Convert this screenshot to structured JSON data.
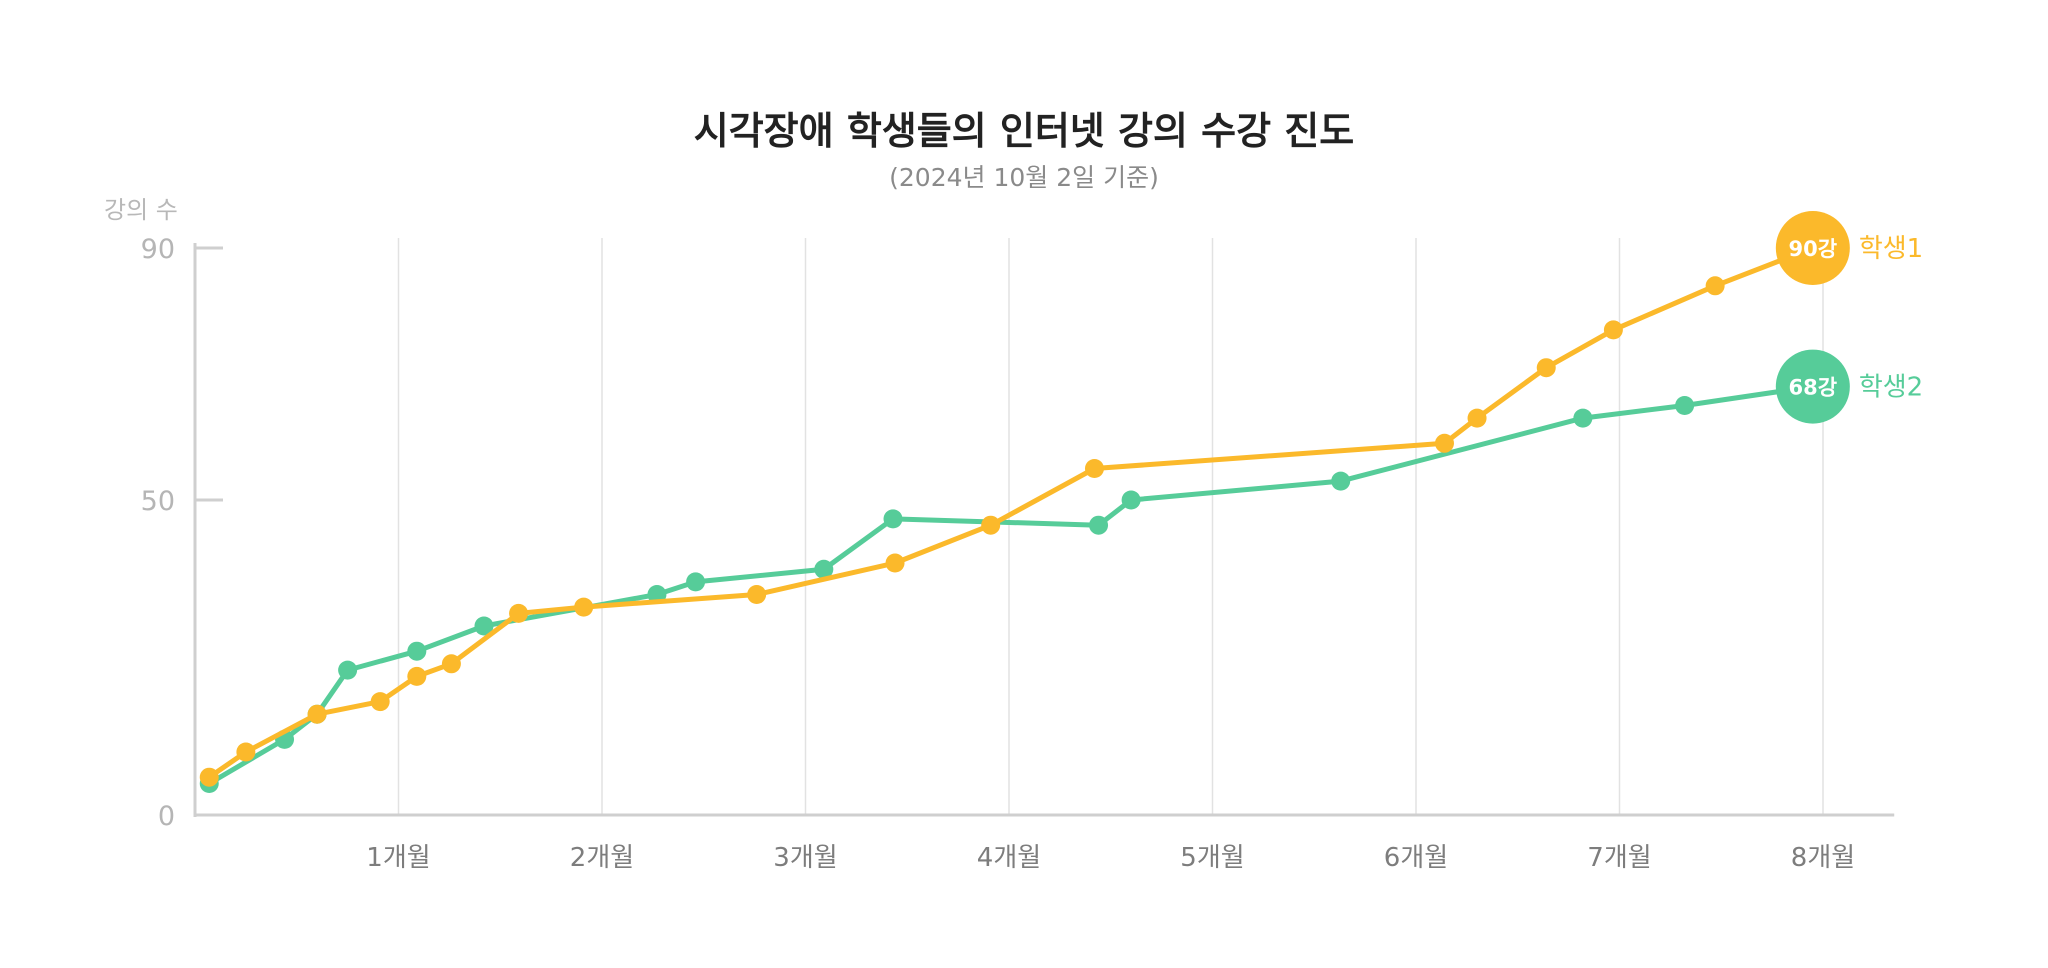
{
  "chart_data": {
    "type": "line",
    "title": "시각장애 학생들의 인터넷 강의 수강 진도",
    "subtitle": "(2024년 10월 2일 기준)",
    "ylabel": "강의 수",
    "xlabel": "",
    "ylim": [
      0,
      90
    ],
    "xlim": [
      0,
      8.35
    ],
    "y_ticks": [
      "0",
      "50",
      "90"
    ],
    "y_tick_values": [
      0,
      50,
      90
    ],
    "x_ticks": [
      "1개월",
      "2개월",
      "3개월",
      "4개월",
      "5개월",
      "6개월",
      "7개월",
      "8개월"
    ],
    "x_tick_values": [
      1,
      2,
      3,
      4,
      5,
      6,
      7,
      8
    ],
    "grid": "vertical",
    "series": [
      {
        "name": "학생2",
        "color": "#56cc99",
        "end_label": "68강",
        "x": [
          0.07,
          0.44,
          0.6,
          0.75,
          1.09,
          1.42,
          2.27,
          2.46,
          3.09,
          3.43,
          4.44,
          4.6,
          5.63,
          6.82,
          7.32,
          7.95
        ],
        "y": [
          5,
          12,
          16,
          23,
          26,
          30,
          35,
          37,
          39,
          47,
          46,
          50,
          53,
          63,
          65,
          68
        ]
      },
      {
        "name": "학생1",
        "color": "#fbb92b",
        "end_label": "90강",
        "x": [
          0.07,
          0.25,
          0.6,
          0.91,
          1.09,
          1.26,
          1.59,
          1.91,
          2.76,
          3.44,
          3.91,
          4.42,
          6.14,
          6.3,
          6.64,
          6.97,
          7.47,
          7.95
        ],
        "y": [
          6,
          10,
          16,
          18,
          22,
          24,
          32,
          33,
          35,
          40,
          46,
          55,
          59,
          63,
          71,
          77,
          84,
          90
        ]
      }
    ]
  }
}
